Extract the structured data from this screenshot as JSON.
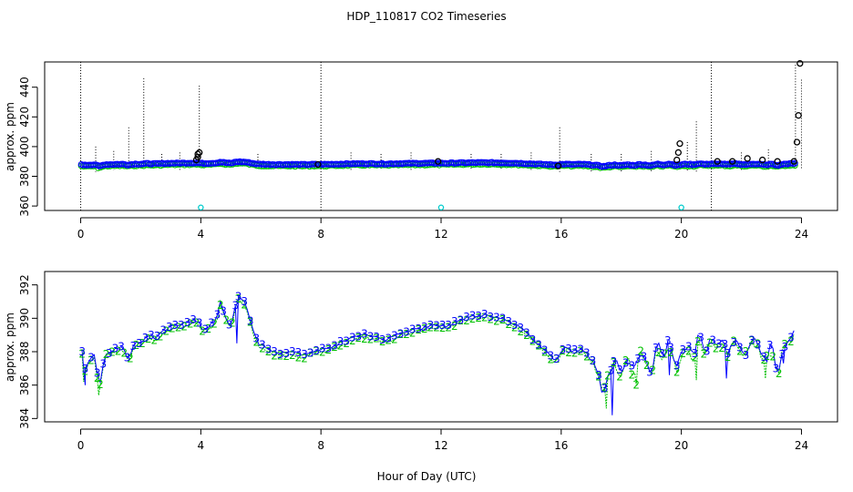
{
  "figure": {
    "title": "HDP_110817  CO2 Timeseries",
    "xlabel": "Hour of Day (UTC)"
  },
  "chart_data": [
    {
      "type": "scatter",
      "ylabel": "approx. ppm",
      "xlim": [
        -1.2,
        25.2
      ],
      "ylim": [
        357,
        457
      ],
      "x_ticks": [
        0,
        4,
        8,
        12,
        16,
        20,
        24
      ],
      "y_ticks": [
        360,
        380,
        400,
        420,
        440
      ],
      "colors": {
        "series3": "#0000ff",
        "series2": "#00c000",
        "outliers": "#000000",
        "flag": "#00cccc",
        "range": "#000000"
      },
      "range_lines": [
        {
          "x": 0.0,
          "low": 357,
          "high": 457
        },
        {
          "x": 0.5,
          "low": 383,
          "high": 400
        },
        {
          "x": 1.1,
          "low": 384,
          "high": 397
        },
        {
          "x": 1.6,
          "low": 385,
          "high": 413
        },
        {
          "x": 2.1,
          "low": 385,
          "high": 446
        },
        {
          "x": 2.7,
          "low": 384,
          "high": 395
        },
        {
          "x": 3.3,
          "low": 384,
          "high": 396
        },
        {
          "x": 3.95,
          "low": 386,
          "high": 441
        },
        {
          "x": 5.9,
          "low": 385,
          "high": 395
        },
        {
          "x": 8.0,
          "low": 357,
          "high": 457
        },
        {
          "x": 9.0,
          "low": 384,
          "high": 396
        },
        {
          "x": 10.0,
          "low": 384,
          "high": 395
        },
        {
          "x": 11.0,
          "low": 384,
          "high": 396
        },
        {
          "x": 13.0,
          "low": 384,
          "high": 395
        },
        {
          "x": 14.0,
          "low": 384,
          "high": 395
        },
        {
          "x": 15.0,
          "low": 384,
          "high": 396
        },
        {
          "x": 15.95,
          "low": 383,
          "high": 413
        },
        {
          "x": 17.0,
          "low": 383,
          "high": 395
        },
        {
          "x": 18.0,
          "low": 383,
          "high": 395
        },
        {
          "x": 19.0,
          "low": 383,
          "high": 397
        },
        {
          "x": 20.2,
          "low": 383,
          "high": 403
        },
        {
          "x": 20.5,
          "low": 383,
          "high": 417
        },
        {
          "x": 21.0,
          "low": 357,
          "high": 457
        },
        {
          "x": 22.0,
          "low": 384,
          "high": 396
        },
        {
          "x": 22.9,
          "low": 384,
          "high": 398
        },
        {
          "x": 23.8,
          "low": 385,
          "high": 455
        },
        {
          "x": 24.0,
          "low": 385,
          "high": 445
        }
      ],
      "outliers": [
        {
          "x": 3.85,
          "y": 391
        },
        {
          "x": 3.9,
          "y": 393
        },
        {
          "x": 3.9,
          "y": 395
        },
        {
          "x": 3.95,
          "y": 396
        },
        {
          "x": 7.9,
          "y": 388
        },
        {
          "x": 11.9,
          "y": 390
        },
        {
          "x": 15.9,
          "y": 387
        },
        {
          "x": 19.85,
          "y": 391
        },
        {
          "x": 19.9,
          "y": 396
        },
        {
          "x": 19.95,
          "y": 402
        },
        {
          "x": 21.2,
          "y": 390
        },
        {
          "x": 21.7,
          "y": 390
        },
        {
          "x": 22.2,
          "y": 392
        },
        {
          "x": 22.7,
          "y": 391
        },
        {
          "x": 23.2,
          "y": 390
        },
        {
          "x": 23.75,
          "y": 390
        },
        {
          "x": 23.85,
          "y": 403
        },
        {
          "x": 23.9,
          "y": 421
        },
        {
          "x": 23.95,
          "y": 456
        }
      ],
      "flags": [
        {
          "x": 4.0,
          "y": 359
        },
        {
          "x": 12.0,
          "y": 359
        },
        {
          "x": 20.0,
          "y": 359
        }
      ]
    },
    {
      "type": "line",
      "ylabel": "approx. ppm",
      "xlim": [
        -1.2,
        25.2
      ],
      "ylim": [
        383.8,
        392.8
      ],
      "x_ticks": [
        0,
        4,
        8,
        12,
        16,
        20,
        24
      ],
      "y_ticks": [
        384,
        386,
        388,
        390,
        392
      ],
      "series": [
        {
          "name": "2",
          "color": "#00c000"
        },
        {
          "name": "3",
          "color": "#0000ff"
        }
      ]
    }
  ],
  "profile": {
    "x": [
      0.05,
      0.15,
      0.3,
      0.5,
      0.6,
      0.8,
      1.0,
      1.2,
      1.4,
      1.6,
      1.8,
      2.0,
      2.2,
      2.5,
      2.8,
      3.0,
      3.3,
      3.6,
      3.9,
      4.1,
      4.3,
      4.5,
      4.65,
      4.8,
      5.0,
      5.2,
      5.35,
      5.5,
      5.7,
      5.9,
      6.1,
      6.3,
      6.6,
      7.0,
      7.4,
      7.8,
      8.0,
      8.3,
      8.6,
      9.0,
      9.4,
      9.8,
      10.2,
      10.6,
      11.0,
      11.4,
      11.8,
      12.2,
      12.6,
      13.0,
      13.4,
      13.8,
      14.2,
      14.6,
      14.9,
      15.2,
      15.5,
      15.8,
      16.1,
      16.4,
      16.7,
      17.0,
      17.2,
      17.4,
      17.6,
      17.8,
      18.0,
      18.2,
      18.4,
      18.6,
      18.8,
      19.0,
      19.2,
      19.4,
      19.6,
      19.8,
      20.0,
      20.2,
      20.4,
      20.6,
      20.8,
      21.0,
      21.2,
      21.4,
      21.6,
      21.8,
      22.0,
      22.2,
      22.4,
      22.6,
      22.8,
      23.0,
      23.2,
      23.4,
      23.6,
      23.8
    ],
    "y": [
      388.0,
      387.0,
      387.6,
      387.8,
      385.5,
      387.9,
      388.0,
      388.2,
      388.3,
      387.5,
      388.6,
      388.5,
      389.0,
      388.8,
      389.3,
      389.5,
      389.6,
      389.8,
      389.9,
      389.2,
      389.6,
      389.8,
      391.0,
      390.2,
      389.4,
      391.3,
      391.1,
      390.9,
      389.5,
      388.5,
      388.3,
      388.0,
      387.9,
      388.0,
      387.8,
      388.1,
      388.1,
      388.2,
      388.5,
      388.8,
      389.0,
      388.9,
      388.7,
      389.1,
      389.3,
      389.4,
      389.6,
      389.5,
      389.9,
      390.1,
      390.2,
      390.1,
      389.9,
      389.5,
      389.0,
      388.5,
      388.0,
      387.5,
      388.3,
      388.0,
      388.2,
      387.5,
      386.8,
      385.5,
      386.8,
      387.5,
      386.5,
      387.8,
      386.8,
      388.0,
      387.5,
      386.5,
      388.5,
      387.6,
      388.8,
      387.0,
      387.8,
      388.5,
      387.6,
      389.2,
      388.0,
      389.0,
      388.3,
      388.7,
      387.9,
      389.0,
      388.2,
      387.8,
      388.8,
      388.3,
      387.3,
      388.5,
      386.7,
      388.4,
      388.9,
      389.1
    ],
    "dips": [
      {
        "x": 0.1,
        "y": 386.2
      },
      {
        "x": 0.15,
        "y": 386.0
      },
      {
        "x": 0.6,
        "y": 385.4
      },
      {
        "x": 5.2,
        "y": 388.5
      },
      {
        "x": 17.5,
        "y": 384.6
      },
      {
        "x": 17.7,
        "y": 384.2
      },
      {
        "x": 18.5,
        "y": 386.0
      },
      {
        "x": 19.6,
        "y": 386.6
      },
      {
        "x": 20.5,
        "y": 386.3
      },
      {
        "x": 21.5,
        "y": 386.4
      },
      {
        "x": 22.8,
        "y": 386.4
      },
      {
        "x": 23.4,
        "y": 387.3
      }
    ]
  }
}
